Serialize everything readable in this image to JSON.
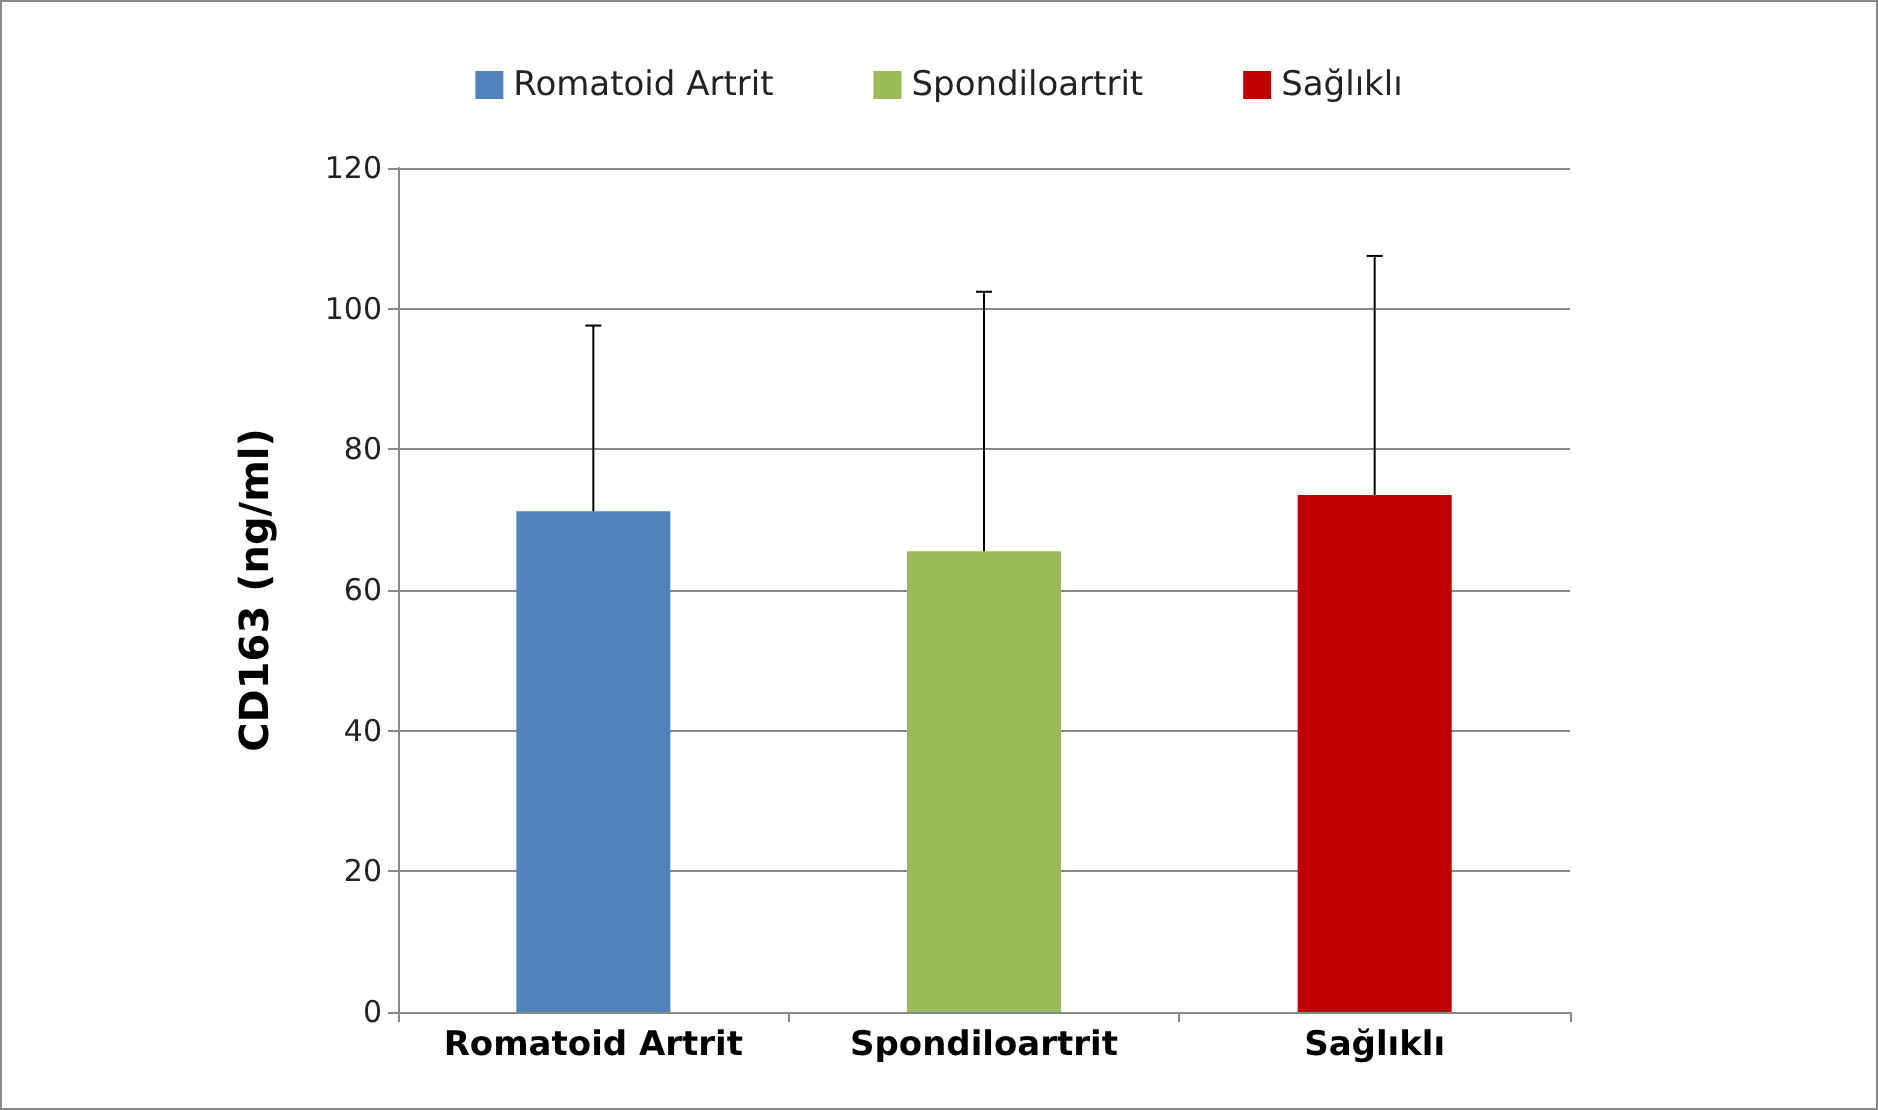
{
  "chart_data": {
    "type": "bar",
    "ylabel": "CD163 (ng/ml)",
    "categories": [
      "Romatoid Artrit",
      "Spondiloartrit",
      "Sağlıklı"
    ],
    "series": [
      {
        "name": "Romatoid Artrit",
        "color": "#4f81bd",
        "values": [
          71.2,
          null,
          null
        ],
        "errors": [
          [
            71.2,
            97.6
          ],
          null,
          null
        ]
      },
      {
        "name": "Spondiloartrit",
        "color": "#9bbb59",
        "values": [
          null,
          65.5,
          null
        ],
        "errors": [
          null,
          [
            65.5,
            102.4
          ],
          null
        ]
      },
      {
        "name": "Sağlıklı",
        "color": "#c00000",
        "values": [
          null,
          null,
          73.5
        ],
        "errors": [
          null,
          null,
          [
            73.5,
            107.5
          ]
        ]
      }
    ],
    "ylim": [
      0,
      120
    ],
    "yticks": [
      0,
      20,
      40,
      60,
      80,
      100,
      120
    ],
    "grid": "y",
    "legend": "top"
  }
}
